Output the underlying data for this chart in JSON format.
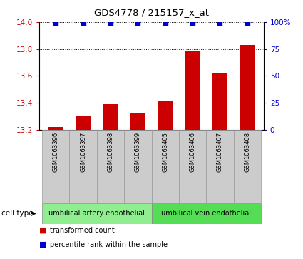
{
  "title": "GDS4778 / 215157_x_at",
  "samples": [
    "GSM1063396",
    "GSM1063397",
    "GSM1063398",
    "GSM1063399",
    "GSM1063405",
    "GSM1063406",
    "GSM1063407",
    "GSM1063408"
  ],
  "transformed_counts": [
    13.22,
    13.3,
    13.39,
    13.32,
    13.41,
    13.78,
    13.62,
    13.83
  ],
  "percentile_ranks": [
    99,
    99,
    99,
    99,
    99,
    99,
    99,
    99
  ],
  "ymin": 13.2,
  "ymax": 14.0,
  "yticks": [
    13.2,
    13.4,
    13.6,
    13.8,
    14.0
  ],
  "right_yticks": [
    0,
    25,
    50,
    75,
    100
  ],
  "right_yticklabels": [
    "0",
    "25",
    "50",
    "75",
    "100%"
  ],
  "bar_color": "#cc0000",
  "dot_color": "#0000cc",
  "cell_type_groups": [
    {
      "label": "umbilical artery endothelial",
      "start": 0,
      "end": 4,
      "color": "#90ee90"
    },
    {
      "label": "umbilical vein endothelial",
      "start": 4,
      "end": 8,
      "color": "#55dd55"
    }
  ],
  "cell_type_label": "cell type",
  "legend_items": [
    {
      "label": "transformed count",
      "color": "#cc0000"
    },
    {
      "label": "percentile rank within the sample",
      "color": "#0000cc"
    }
  ],
  "bar_width": 0.55,
  "sample_box_color": "#cccccc",
  "sample_box_edge": "#999999"
}
